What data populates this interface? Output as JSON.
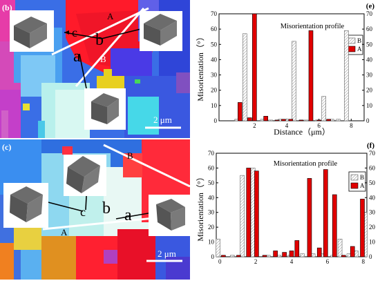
{
  "panels": {
    "b": "(b)",
    "c": "(c)",
    "e": "(e)",
    "f": "(f)"
  },
  "map_top": {
    "line_labels": {
      "A": "A",
      "B": "B"
    },
    "grain_labels": {
      "a": "a",
      "b": "b",
      "c": "c"
    },
    "scale_bar": "2 μm"
  },
  "map_bottom": {
    "line_labels": {
      "A": "A",
      "B": "B"
    },
    "grain_labels": {
      "a": "a",
      "b": "b",
      "c": "c"
    },
    "scale_bar": "2 μm"
  },
  "colors": {
    "series_A": "#e00000",
    "series_B_hatch": "#9a9a9a"
  },
  "chart_data": [
    {
      "type": "bar",
      "panel": "(e)",
      "title": "Misorientation profile",
      "xlabel": "Distance（μm）",
      "ylabel": "Misorientation（°）",
      "xlim": [
        -0.2,
        8.8
      ],
      "ylim": [
        0,
        70
      ],
      "xticks": [
        2,
        4,
        6,
        8
      ],
      "yticks": [
        0,
        10,
        20,
        30,
        40,
        50,
        60,
        70
      ],
      "legend": "top-center",
      "series": [
        {
          "name": "B",
          "style": "hatched",
          "points": [
            [
              0.9,
              1
            ],
            [
              1.4,
              57
            ],
            [
              2.5,
              1
            ],
            [
              3.0,
              0.5
            ],
            [
              3.6,
              1
            ],
            [
              4.0,
              1
            ],
            [
              4.45,
              52
            ],
            [
              5.2,
              0.5
            ],
            [
              5.9,
              0.5
            ],
            [
              6.3,
              16
            ],
            [
              6.8,
              1
            ],
            [
              7.2,
              1
            ],
            [
              7.7,
              59
            ]
          ]
        },
        {
          "name": "A",
          "style": "solid",
          "points": [
            [
              1.1,
              12
            ],
            [
              1.7,
              2
            ],
            [
              2.0,
              70
            ],
            [
              2.7,
              3
            ],
            [
              3.4,
              0.5
            ],
            [
              3.8,
              1
            ],
            [
              4.25,
              1
            ],
            [
              4.9,
              0.5
            ],
            [
              5.5,
              59
            ],
            [
              6.0,
              0.5
            ],
            [
              6.6,
              1
            ]
          ]
        }
      ]
    },
    {
      "type": "bar",
      "panel": "(f)",
      "title": "Misorientation profile",
      "xlabel": "Distance（μm）",
      "ylabel": "Misorientation（°）",
      "xlim": [
        -0.2,
        8.2
      ],
      "ylim": [
        0,
        70
      ],
      "xticks": [
        0,
        2,
        4,
        6,
        8
      ],
      "yticks": [
        0,
        10,
        20,
        30,
        40,
        50,
        60,
        70
      ],
      "legend": "top-right",
      "series": [
        {
          "name": "B",
          "style": "hatched",
          "points": [
            [
              -0.1,
              12
            ],
            [
              0.7,
              1
            ],
            [
              1.25,
              55
            ],
            [
              1.85,
              60
            ],
            [
              2.7,
              1
            ],
            [
              3.3,
              1
            ],
            [
              3.9,
              1
            ],
            [
              4.6,
              2
            ],
            [
              5.2,
              2
            ],
            [
              5.7,
              2
            ],
            [
              6.3,
              1
            ],
            [
              6.7,
              12
            ],
            [
              7.2,
              2
            ],
            [
              7.6,
              4
            ],
            [
              8.1,
              30
            ]
          ]
        },
        {
          "name": "A",
          "style": "solid",
          "points": [
            [
              0.2,
              1
            ],
            [
              1.05,
              1
            ],
            [
              1.6,
              60
            ],
            [
              2.05,
              58
            ],
            [
              2.5,
              1
            ],
            [
              3.1,
              4
            ],
            [
              3.6,
              3
            ],
            [
              4.0,
              4
            ],
            [
              4.3,
              11
            ],
            [
              5.0,
              53
            ],
            [
              5.55,
              6
            ],
            [
              5.9,
              59
            ],
            [
              6.4,
              42
            ],
            [
              6.9,
              1
            ],
            [
              7.4,
              7
            ],
            [
              7.95,
              39
            ]
          ]
        }
      ]
    }
  ]
}
